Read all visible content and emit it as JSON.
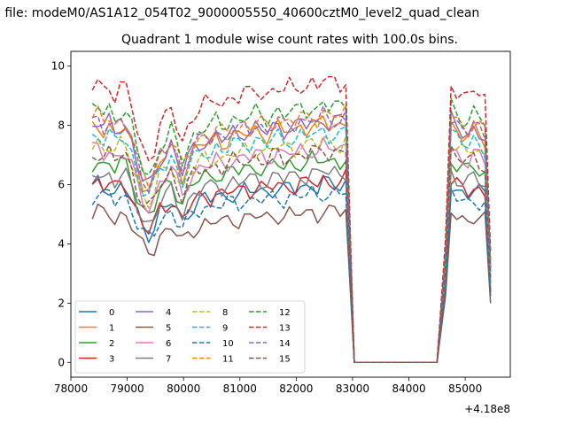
{
  "chart_data": {
    "type": "line",
    "suptitle": "n file: modeM0/AS1A12_054T02_9000005550_40600cztM0_level2_quad_clean",
    "title": "Quadrant 1 module wise count rates with 100.0s bins.",
    "xlabel": "",
    "ylabel": "",
    "x_offset_label": "+4.18e8",
    "xlim": [
      78000,
      85800
    ],
    "ylim": [
      -0.5,
      10.5
    ],
    "x_ticks": [
      78000,
      79000,
      80000,
      81000,
      82000,
      83000,
      84000,
      85000
    ],
    "x_tick_labels": [
      "78000",
      "79000",
      "80000",
      "81000",
      "82000",
      "83000",
      "84000",
      "85000"
    ],
    "y_ticks": [
      0,
      2,
      4,
      6,
      8,
      10
    ],
    "y_tick_labels": [
      "0",
      "2",
      "4",
      "6",
      "8",
      "10"
    ],
    "grid": false,
    "legend": {
      "position": "lower-left",
      "columns": 4
    },
    "x": [
      78380,
      78480,
      78580,
      78680,
      78780,
      78880,
      78980,
      79080,
      79180,
      79280,
      79380,
      79480,
      79580,
      79680,
      79780,
      79880,
      79980,
      80080,
      80180,
      80280,
      80380,
      80480,
      80580,
      80680,
      80780,
      80880,
      80980,
      81080,
      81180,
      81280,
      81380,
      81480,
      81580,
      81680,
      81780,
      81880,
      81980,
      82080,
      82180,
      82280,
      82380,
      82480,
      82580,
      82680,
      82780,
      82880,
      83030,
      83500,
      84000,
      84500,
      84650,
      84750,
      84850,
      84950,
      85050,
      85150,
      85250,
      85350,
      85450
    ],
    "base": [
      1.0,
      1.02,
      0.99,
      1.01,
      0.97,
      1.0,
      0.99,
      0.93,
      0.84,
      0.77,
      0.74,
      0.78,
      0.86,
      0.88,
      0.92,
      0.86,
      0.8,
      0.86,
      0.9,
      0.92,
      0.94,
      0.93,
      0.96,
      0.94,
      0.95,
      0.97,
      0.96,
      0.98,
      0.97,
      0.99,
      0.98,
      0.97,
      0.99,
      1.0,
      0.98,
      1.0,
      0.99,
      1.01,
      1.0,
      1.02,
      1.0,
      1.03,
      1.01,
      1.02,
      1.01,
      1.03,
      0.0,
      0.0,
      0.0,
      0.0,
      0.45,
      1.02,
      0.99,
      0.97,
      0.96,
      0.99,
      0.97,
      0.95,
      0.4
    ],
    "series": [
      {
        "name": "0",
        "color": "#1f77b4",
        "style": "solid",
        "level": 5.9
      },
      {
        "name": "1",
        "color": "#ff7f0e",
        "style": "solid",
        "level": 7.9
      },
      {
        "name": "2",
        "color": "#2ca02c",
        "style": "solid",
        "level": 6.7
      },
      {
        "name": "3",
        "color": "#d62728",
        "style": "solid",
        "level": 6.0
      },
      {
        "name": "4",
        "color": "#9467bd",
        "style": "solid",
        "level": 8.0
      },
      {
        "name": "5",
        "color": "#8c564b",
        "style": "solid",
        "level": 5.0
      },
      {
        "name": "6",
        "color": "#e377c2",
        "style": "solid",
        "level": 7.1
      },
      {
        "name": "7",
        "color": "#7f7f7f",
        "style": "solid",
        "level": 6.3
      },
      {
        "name": "8",
        "color": "#bcbd22",
        "style": "dashed",
        "level": 7.3
      },
      {
        "name": "9",
        "color": "#17becf",
        "style": "dashed",
        "level": 7.6
      },
      {
        "name": "10",
        "color": "#1f77b4",
        "style": "dashed",
        "level": 5.6
      },
      {
        "name": "11",
        "color": "#ff7f0e",
        "style": "dashed",
        "level": 8.2
      },
      {
        "name": "12",
        "color": "#2ca02c",
        "style": "dashed",
        "level": 8.5
      },
      {
        "name": "13",
        "color": "#d62728",
        "style": "dashed",
        "level": 9.3
      },
      {
        "name": "14",
        "color": "#9467bd",
        "style": "dashed",
        "level": 8.1
      },
      {
        "name": "15",
        "color": "#8c564b",
        "style": "dashed",
        "level": 7.0
      }
    ]
  }
}
